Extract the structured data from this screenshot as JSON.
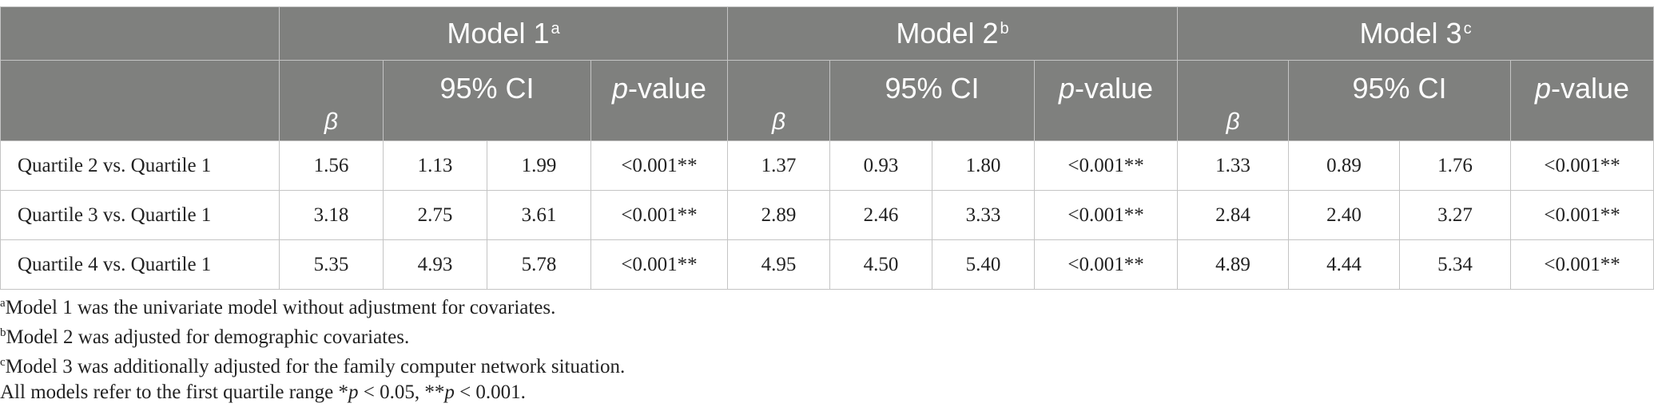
{
  "table": {
    "models": [
      {
        "label": "Model 1",
        "sup": "a"
      },
      {
        "label": "Model 2",
        "sup": "b"
      },
      {
        "label": "Model 3",
        "sup": "c"
      }
    ],
    "sub_headers": {
      "beta": "β",
      "ci": "95% CI",
      "p_letter": "p",
      "p_rest": "-value"
    },
    "rows": [
      {
        "label": "Quartile 2 vs. Quartile 1",
        "cells": [
          "1.56",
          "1.13",
          "1.99",
          "<0.001**",
          "1.37",
          "0.93",
          "1.80",
          "<0.001**",
          "1.33",
          "0.89",
          "1.76",
          "<0.001**"
        ]
      },
      {
        "label": "Quartile 3 vs. Quartile 1",
        "cells": [
          "3.18",
          "2.75",
          "3.61",
          "<0.001**",
          "2.89",
          "2.46",
          "3.33",
          "<0.001**",
          "2.84",
          "2.40",
          "3.27",
          "<0.001**"
        ]
      },
      {
        "label": "Quartile 4 vs. Quartile 1",
        "cells": [
          "5.35",
          "4.93",
          "5.78",
          "<0.001**",
          "4.95",
          "4.50",
          "5.40",
          "<0.001**",
          "4.89",
          "4.44",
          "5.34",
          "<0.001**"
        ]
      }
    ]
  },
  "footnotes": [
    {
      "sup": "a",
      "text": "Model 1 was the univariate model without adjustment for covariates."
    },
    {
      "sup": "b",
      "text": "Model 2 was adjusted for demographic covariates."
    },
    {
      "sup": "c",
      "text": "Model 3 was additionally adjusted for the family computer network situation."
    }
  ],
  "significance_note": {
    "prefix": "All models refer to the first quartile range *",
    "p1": "p",
    "mid1": " < 0.05, **",
    "p2": "p",
    "mid2": " < 0.001."
  }
}
